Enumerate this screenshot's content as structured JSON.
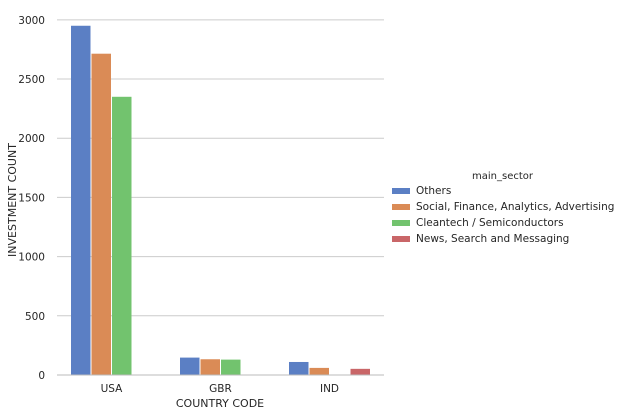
{
  "chart_data": {
    "type": "bar",
    "title": "",
    "xlabel": "COUNTRY CODE",
    "ylabel": "INVESTMENT COUNT",
    "categories": [
      "USA",
      "GBR",
      "IND"
    ],
    "ylim": [
      0,
      3100
    ],
    "yticks": [
      0,
      500,
      1000,
      1500,
      2000,
      2500,
      3000
    ],
    "grid": "horizontal",
    "legend_title": "main_sector",
    "legend_placement": "right",
    "series": [
      {
        "name": "Others",
        "color": "#5b7fc4",
        "values": [
          2950,
          147,
          110
        ]
      },
      {
        "name": "Social, Finance, Analytics, Advertising",
        "color": "#da8b56",
        "values": [
          2714,
          133,
          60
        ]
      },
      {
        "name": "Cleantech / Semiconductors",
        "color": "#72c36e",
        "values": [
          2350,
          130,
          0
        ]
      },
      {
        "name": "News, Search and Messaging",
        "color": "#c96668",
        "values": [
          0,
          0,
          52
        ]
      }
    ]
  }
}
